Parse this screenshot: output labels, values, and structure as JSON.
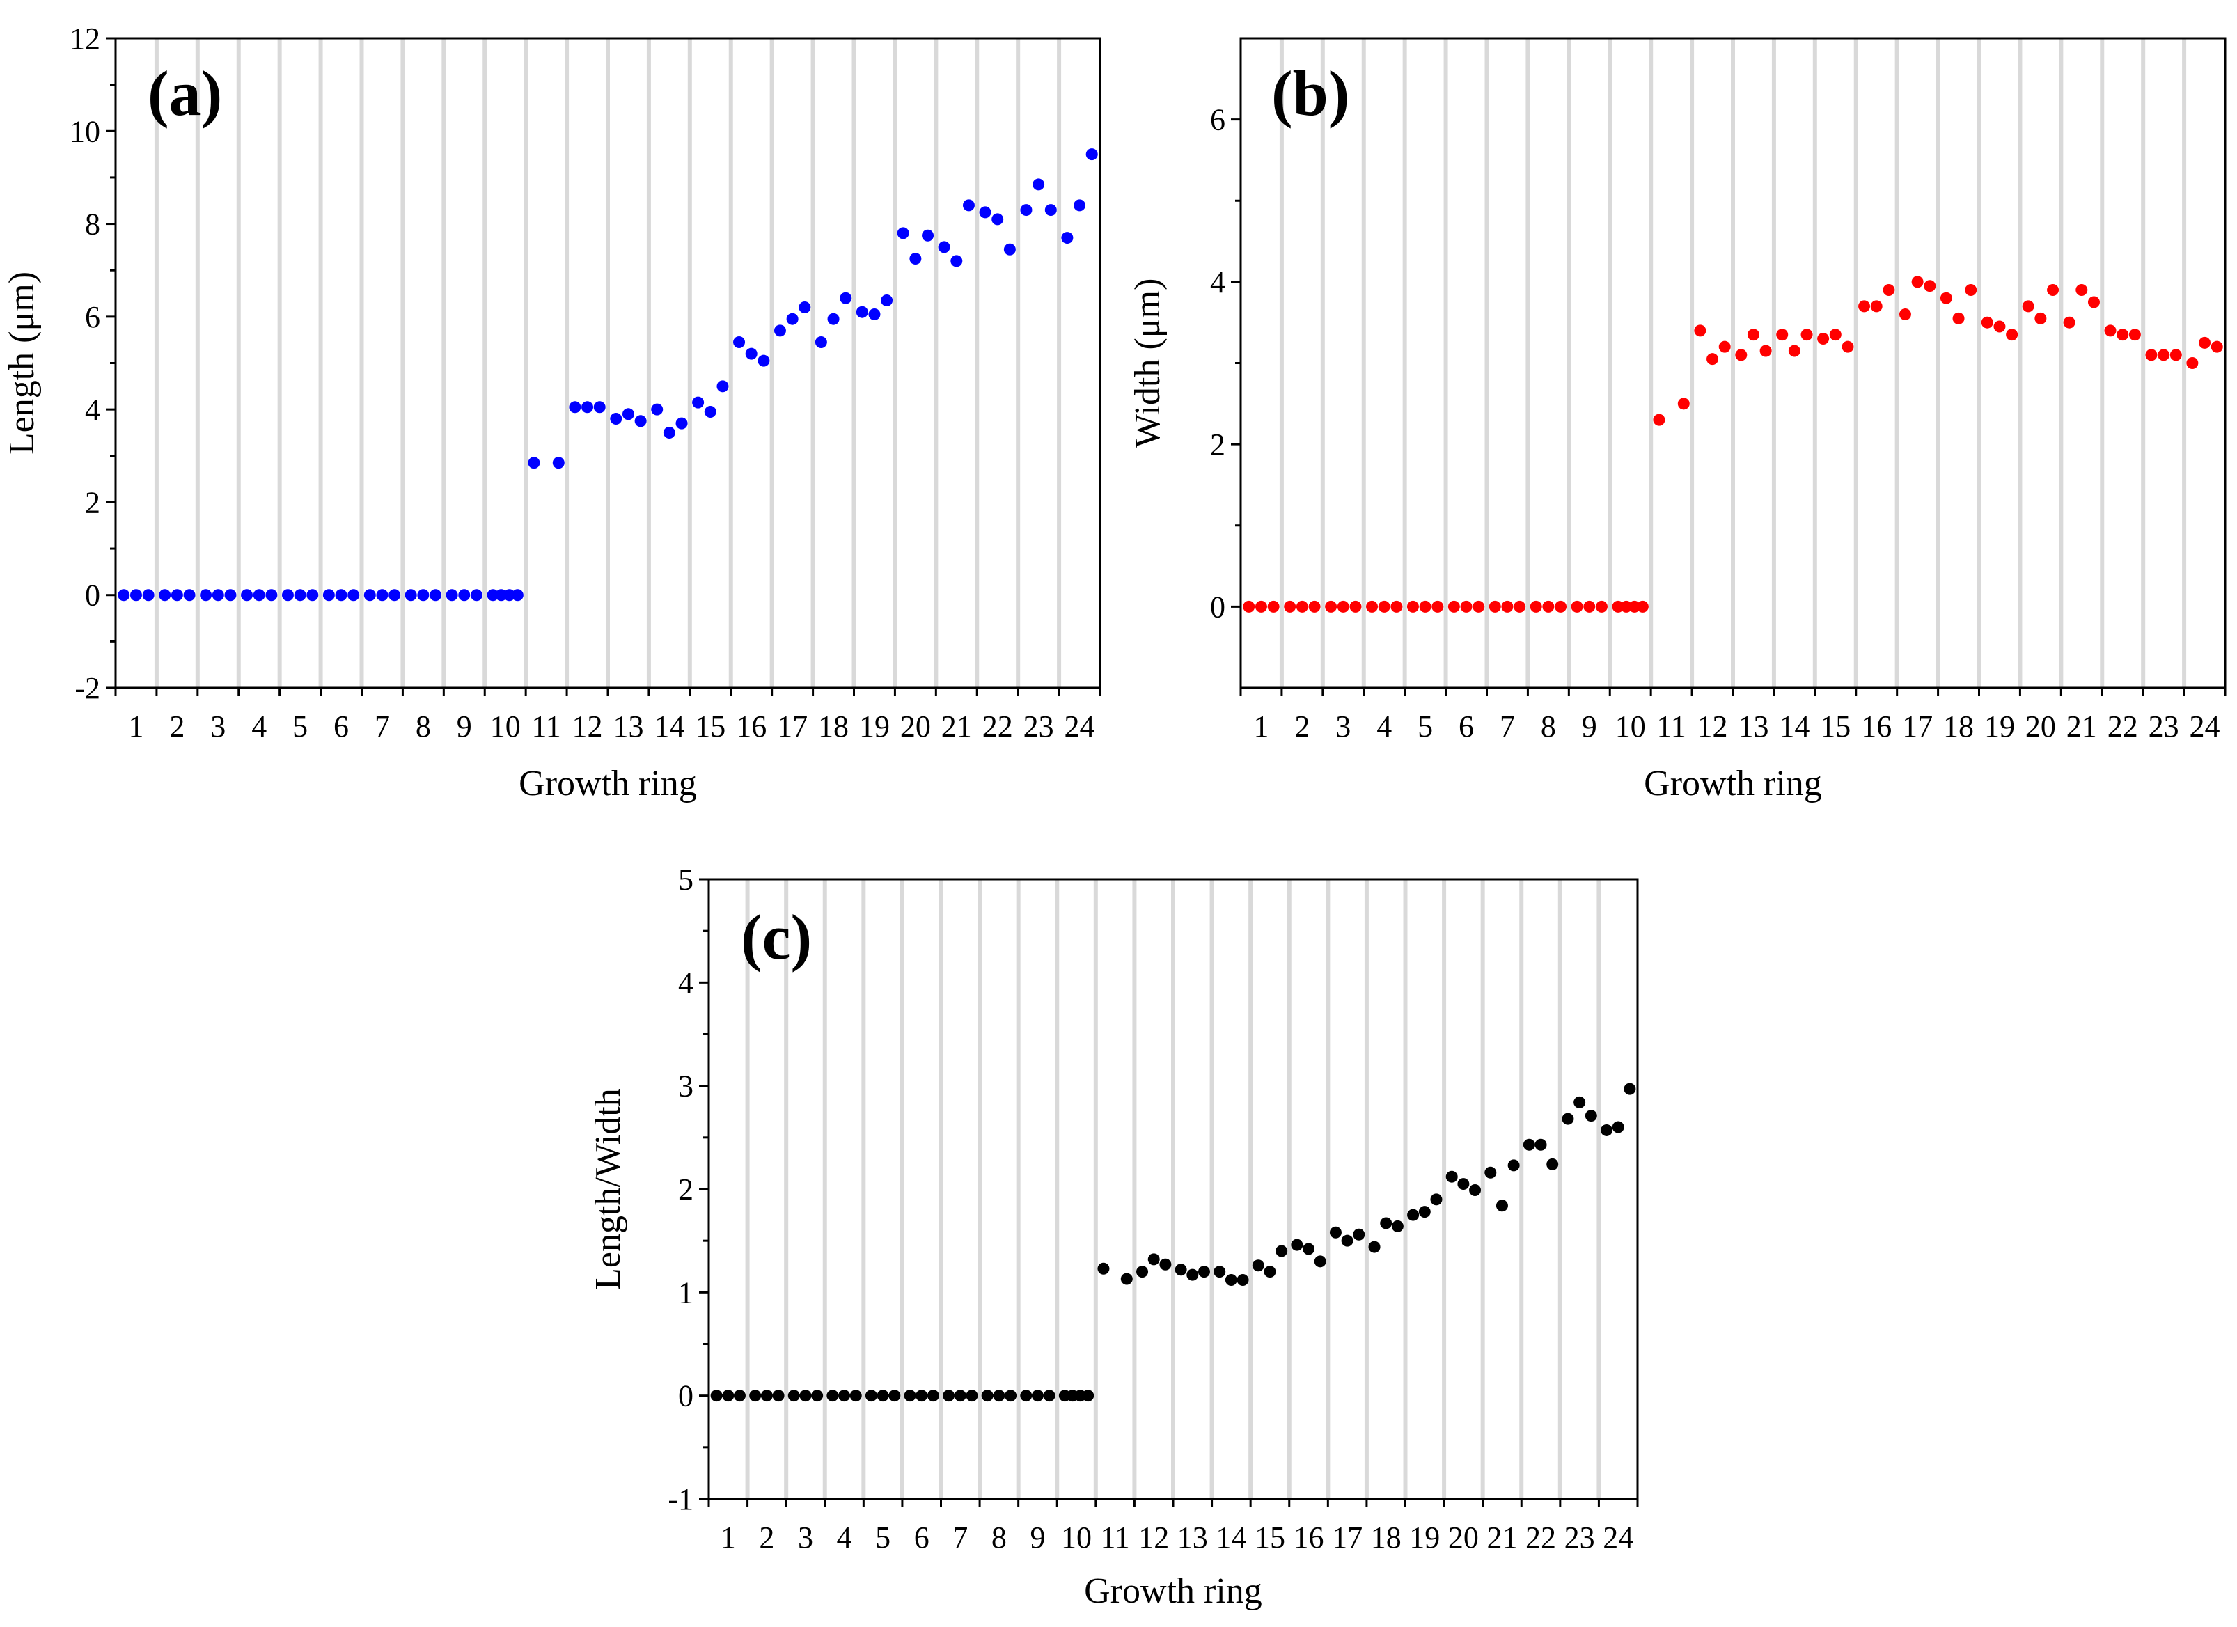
{
  "chart_data": [
    {
      "type": "scatter",
      "panel_label": "(a)",
      "xlabel": "Growth ring",
      "ylabel": "Length (μm)",
      "categories": [
        "1",
        "2",
        "3",
        "4",
        "5",
        "6",
        "7",
        "8",
        "9",
        "10",
        "11",
        "12",
        "13",
        "14",
        "15",
        "16",
        "17",
        "18",
        "19",
        "20",
        "21",
        "22",
        "23",
        "24"
      ],
      "ylim": [
        -2,
        12
      ],
      "yticks": [
        -2,
        0,
        2,
        4,
        6,
        8,
        10,
        12
      ],
      "grid": "vertical bands between growth rings",
      "color": "#0000ff",
      "series": [
        {
          "name": "Length",
          "points": [
            [
              1,
              0
            ],
            [
              1,
              0
            ],
            [
              1,
              0
            ],
            [
              2,
              0
            ],
            [
              2,
              0
            ],
            [
              2,
              0
            ],
            [
              3,
              0
            ],
            [
              3,
              0
            ],
            [
              3,
              0
            ],
            [
              4,
              0
            ],
            [
              4,
              0
            ],
            [
              4,
              0
            ],
            [
              5,
              0
            ],
            [
              5,
              0
            ],
            [
              5,
              0
            ],
            [
              6,
              0
            ],
            [
              6,
              0
            ],
            [
              6,
              0
            ],
            [
              7,
              0
            ],
            [
              7,
              0
            ],
            [
              7,
              0
            ],
            [
              8,
              0
            ],
            [
              8,
              0
            ],
            [
              8,
              0
            ],
            [
              9,
              0
            ],
            [
              9,
              0
            ],
            [
              9,
              0
            ],
            [
              10,
              0
            ],
            [
              10,
              0
            ],
            [
              10,
              0
            ],
            [
              10,
              0
            ],
            [
              11,
              2.85
            ],
            [
              11,
              2.85
            ],
            [
              12,
              4.05
            ],
            [
              12,
              4.05
            ],
            [
              12,
              4.05
            ],
            [
              13,
              3.8
            ],
            [
              13,
              3.9
            ],
            [
              13,
              3.75
            ],
            [
              14,
              4.0
            ],
            [
              14,
              3.5
            ],
            [
              14,
              3.7
            ],
            [
              15,
              4.15
            ],
            [
              15,
              3.95
            ],
            [
              15,
              4.5
            ],
            [
              16,
              5.45
            ],
            [
              16,
              5.2
            ],
            [
              16,
              5.05
            ],
            [
              17,
              5.7
            ],
            [
              17,
              5.95
            ],
            [
              17,
              6.2
            ],
            [
              18,
              5.45
            ],
            [
              18,
              5.95
            ],
            [
              18,
              6.4
            ],
            [
              19,
              6.1
            ],
            [
              19,
              6.05
            ],
            [
              19,
              6.35
            ],
            [
              20,
              7.8
            ],
            [
              20,
              7.25
            ],
            [
              20,
              7.75
            ],
            [
              21,
              7.5
            ],
            [
              21,
              7.2
            ],
            [
              21,
              8.4
            ],
            [
              22,
              8.25
            ],
            [
              22,
              8.1
            ],
            [
              22,
              7.45
            ],
            [
              23,
              8.3
            ],
            [
              23,
              8.85
            ],
            [
              23,
              8.3
            ],
            [
              24,
              7.7
            ],
            [
              24,
              8.4
            ],
            [
              24,
              9.5
            ]
          ]
        }
      ]
    },
    {
      "type": "scatter",
      "panel_label": "(b)",
      "xlabel": "Growth ring",
      "ylabel": "Width (μm)",
      "categories": [
        "1",
        "2",
        "3",
        "4",
        "5",
        "6",
        "7",
        "8",
        "9",
        "10",
        "11",
        "12",
        "13",
        "14",
        "15",
        "16",
        "17",
        "18",
        "19",
        "20",
        "21",
        "22",
        "23",
        "24"
      ],
      "ylim": [
        -1,
        7
      ],
      "yticks": [
        0,
        2,
        4,
        6
      ],
      "grid": "vertical bands between growth rings",
      "color": "#ff0000",
      "series": [
        {
          "name": "Width",
          "points": [
            [
              1,
              0
            ],
            [
              1,
              0
            ],
            [
              1,
              0
            ],
            [
              2,
              0
            ],
            [
              2,
              0
            ],
            [
              2,
              0
            ],
            [
              3,
              0
            ],
            [
              3,
              0
            ],
            [
              3,
              0
            ],
            [
              4,
              0
            ],
            [
              4,
              0
            ],
            [
              4,
              0
            ],
            [
              5,
              0
            ],
            [
              5,
              0
            ],
            [
              5,
              0
            ],
            [
              6,
              0
            ],
            [
              6,
              0
            ],
            [
              6,
              0
            ],
            [
              7,
              0
            ],
            [
              7,
              0
            ],
            [
              7,
              0
            ],
            [
              8,
              0
            ],
            [
              8,
              0
            ],
            [
              8,
              0
            ],
            [
              9,
              0
            ],
            [
              9,
              0
            ],
            [
              9,
              0
            ],
            [
              10,
              0
            ],
            [
              10,
              0
            ],
            [
              10,
              0
            ],
            [
              10,
              0
            ],
            [
              11,
              2.3
            ],
            [
              11,
              2.5
            ],
            [
              12,
              3.4
            ],
            [
              12,
              3.05
            ],
            [
              12,
              3.2
            ],
            [
              13,
              3.1
            ],
            [
              13,
              3.35
            ],
            [
              13,
              3.15
            ],
            [
              14,
              3.35
            ],
            [
              14,
              3.15
            ],
            [
              14,
              3.35
            ],
            [
              15,
              3.3
            ],
            [
              15,
              3.35
            ],
            [
              15,
              3.2
            ],
            [
              16,
              3.7
            ],
            [
              16,
              3.7
            ],
            [
              16,
              3.9
            ],
            [
              17,
              3.6
            ],
            [
              17,
              4.0
            ],
            [
              17,
              3.95
            ],
            [
              18,
              3.8
            ],
            [
              18,
              3.55
            ],
            [
              18,
              3.9
            ],
            [
              19,
              3.5
            ],
            [
              19,
              3.45
            ],
            [
              19,
              3.35
            ],
            [
              20,
              3.7
            ],
            [
              20,
              3.55
            ],
            [
              20,
              3.9
            ],
            [
              21,
              3.5
            ],
            [
              21,
              3.9
            ],
            [
              21,
              3.75
            ],
            [
              22,
              3.4
            ],
            [
              22,
              3.35
            ],
            [
              22,
              3.35
            ],
            [
              23,
              3.1
            ],
            [
              23,
              3.1
            ],
            [
              23,
              3.1
            ],
            [
              24,
              3.0
            ],
            [
              24,
              3.25
            ],
            [
              24,
              3.2
            ]
          ]
        }
      ]
    },
    {
      "type": "scatter",
      "panel_label": "(c)",
      "xlabel": "Growth ring",
      "ylabel": "Length/Width",
      "categories": [
        "1",
        "2",
        "3",
        "4",
        "5",
        "6",
        "7",
        "8",
        "9",
        "10",
        "11",
        "12",
        "13",
        "14",
        "15",
        "16",
        "17",
        "18",
        "19",
        "20",
        "21",
        "22",
        "23",
        "24"
      ],
      "ylim": [
        -1,
        5
      ],
      "yticks": [
        -1,
        0,
        1,
        2,
        3,
        4,
        5
      ],
      "grid": "vertical bands between growth rings",
      "color": "#000000",
      "series": [
        {
          "name": "Length/Width",
          "points": [
            [
              1,
              0
            ],
            [
              1,
              0
            ],
            [
              1,
              0
            ],
            [
              2,
              0
            ],
            [
              2,
              0
            ],
            [
              2,
              0
            ],
            [
              3,
              0
            ],
            [
              3,
              0
            ],
            [
              3,
              0
            ],
            [
              4,
              0
            ],
            [
              4,
              0
            ],
            [
              4,
              0
            ],
            [
              5,
              0
            ],
            [
              5,
              0
            ],
            [
              5,
              0
            ],
            [
              6,
              0
            ],
            [
              6,
              0
            ],
            [
              6,
              0
            ],
            [
              7,
              0
            ],
            [
              7,
              0
            ],
            [
              7,
              0
            ],
            [
              8,
              0
            ],
            [
              8,
              0
            ],
            [
              8,
              0
            ],
            [
              9,
              0
            ],
            [
              9,
              0
            ],
            [
              9,
              0
            ],
            [
              10,
              0
            ],
            [
              10,
              0
            ],
            [
              10,
              0
            ],
            [
              10,
              0
            ],
            [
              11,
              1.23
            ],
            [
              11,
              1.13
            ],
            [
              12,
              1.2
            ],
            [
              12,
              1.32
            ],
            [
              12,
              1.27
            ],
            [
              13,
              1.22
            ],
            [
              13,
              1.17
            ],
            [
              13,
              1.2
            ],
            [
              14,
              1.2
            ],
            [
              14,
              1.12
            ],
            [
              14,
              1.12
            ],
            [
              15,
              1.26
            ],
            [
              15,
              1.2
            ],
            [
              15,
              1.4
            ],
            [
              16,
              1.46
            ],
            [
              16,
              1.42
            ],
            [
              16,
              1.3
            ],
            [
              17,
              1.58
            ],
            [
              17,
              1.5
            ],
            [
              17,
              1.56
            ],
            [
              18,
              1.44
            ],
            [
              18,
              1.67
            ],
            [
              18,
              1.64
            ],
            [
              19,
              1.75
            ],
            [
              19,
              1.78
            ],
            [
              19,
              1.9
            ],
            [
              20,
              2.12
            ],
            [
              20,
              2.05
            ],
            [
              20,
              1.99
            ],
            [
              21,
              2.16
            ],
            [
              21,
              1.84
            ],
            [
              21,
              2.23
            ],
            [
              22,
              2.43
            ],
            [
              22,
              2.43
            ],
            [
              22,
              2.24
            ],
            [
              23,
              2.68
            ],
            [
              23,
              2.84
            ],
            [
              23,
              2.71
            ],
            [
              24,
              2.57
            ],
            [
              24,
              2.6
            ],
            [
              24,
              2.97
            ]
          ]
        }
      ]
    }
  ]
}
